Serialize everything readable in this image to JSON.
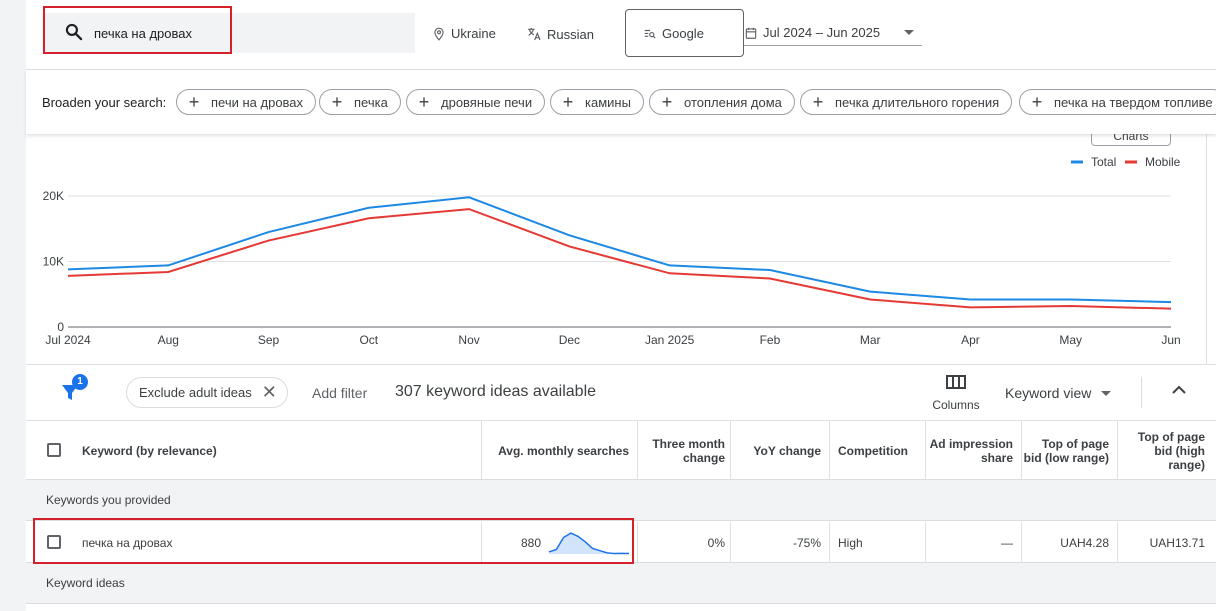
{
  "search": {
    "query": "печка на дровах"
  },
  "location": "Ukraine",
  "language": "Russian",
  "network": "Google",
  "date_range": "Jul 2024 – Jun 2025",
  "broaden": {
    "label": "Broaden your search:",
    "chips": [
      "печи на дровах",
      "печка",
      "дровяные печи",
      "камины",
      "отопления дома",
      "печка длительного горения",
      "печка на твердом топливе"
    ]
  },
  "charts_button": "Charts",
  "chart_data": {
    "type": "line",
    "x": [
      "Jul 2024",
      "Aug",
      "Sep",
      "Oct",
      "Nov",
      "Dec",
      "Jan 2025",
      "Feb",
      "Mar",
      "Apr",
      "May",
      "Jun"
    ],
    "series": [
      {
        "name": "Total",
        "color": "#1e88e5",
        "values": [
          8800,
          9400,
          14500,
          18200,
          19800,
          14000,
          9400,
          8700,
          5400,
          4200,
          4200,
          3800
        ]
      },
      {
        "name": "Mobile",
        "color": "#e53935",
        "values": [
          7800,
          8400,
          13200,
          16600,
          18000,
          12300,
          8200,
          7400,
          4200,
          3000,
          3200,
          2800
        ]
      }
    ],
    "y_ticks": [
      "0",
      "10K",
      "20K"
    ],
    "ylim": [
      0,
      20000
    ],
    "grid": true,
    "legend_position": "top-right"
  },
  "filter_bar": {
    "filter_count": "1",
    "exclude_chip": "Exclude adult ideas",
    "add_filter": "Add filter",
    "count_text": "307 keyword ideas available",
    "columns": "Columns",
    "keyword_view": "Keyword view"
  },
  "table": {
    "headers": {
      "keyword": "Keyword (by relevance)",
      "avg": "Avg. monthly searches",
      "three_month": "Three month change",
      "yoy": "YoY change",
      "competition": "Competition",
      "ad_share": "Ad impression share",
      "bid_low": "Top of page bid (low range)",
      "bid_high": "Top of page bid (high range)"
    },
    "section_provided": "Keywords you provided",
    "row": {
      "keyword": "печка на дровах",
      "avg": "880",
      "three_month": "0%",
      "yoy": "-75%",
      "competition": "High",
      "ad_share": "—",
      "bid_low": "UAH4.28",
      "bid_high": "UAH13.71",
      "trend": [
        0.1,
        0.2,
        0.75,
        0.95,
        0.8,
        0.55,
        0.25,
        0.15,
        0.05,
        0.02,
        0.03,
        0.02
      ]
    },
    "section_ideas": "Keyword ideas"
  }
}
